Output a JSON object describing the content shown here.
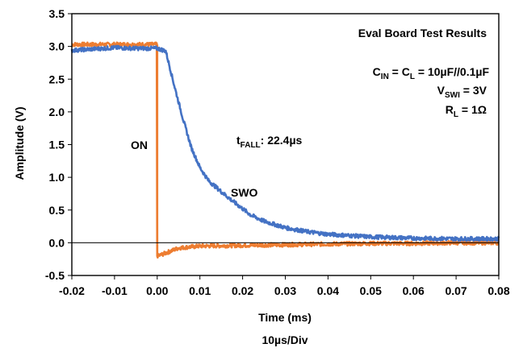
{
  "chart_data": {
    "type": "line",
    "title": "",
    "xlabel": "Time (ms)",
    "ylabel": "Amplitude (V)",
    "x_scale_note": "10µs/Div",
    "xlim": [
      -0.02,
      0.08
    ],
    "ylim": [
      -0.5,
      3.5
    ],
    "x_ticks": [
      "-0.02",
      "-0.01",
      "0.00",
      "0.01",
      "0.02",
      "0.03",
      "0.04",
      "0.05",
      "0.06",
      "0.07",
      "0.08"
    ],
    "y_ticks": [
      "-0.5",
      "0.0",
      "0.5",
      "1.0",
      "1.5",
      "2.0",
      "2.5",
      "3.0",
      "3.5"
    ],
    "grid": false,
    "legend": "none",
    "series": [
      {
        "name": "ON",
        "color": "#ED7D31",
        "x": [
          -0.02,
          -0.015,
          -0.01,
          -0.005,
          -0.0002,
          0.0,
          0.0003,
          0.005,
          0.01,
          0.02,
          0.03,
          0.04,
          0.05,
          0.06,
          0.07,
          0.08
        ],
        "y": [
          3.03,
          3.04,
          3.03,
          3.02,
          3.03,
          1.5,
          -0.2,
          -0.08,
          -0.05,
          -0.04,
          -0.03,
          -0.02,
          -0.01,
          -0.01,
          0.0,
          0.0
        ]
      },
      {
        "name": "SWO",
        "color": "#4472C4",
        "x": [
          -0.02,
          -0.015,
          -0.01,
          -0.005,
          0.0,
          0.002,
          0.004,
          0.006,
          0.008,
          0.01,
          0.012,
          0.015,
          0.018,
          0.02,
          0.022,
          0.025,
          0.03,
          0.035,
          0.04,
          0.05,
          0.06,
          0.07,
          0.08
        ],
        "y": [
          2.94,
          2.96,
          2.98,
          2.97,
          2.97,
          2.93,
          2.4,
          1.9,
          1.45,
          1.15,
          0.95,
          0.78,
          0.62,
          0.52,
          0.42,
          0.33,
          0.23,
          0.17,
          0.13,
          0.09,
          0.07,
          0.06,
          0.06
        ]
      }
    ],
    "annotations": {
      "results_title": "Eval Board Test Results",
      "cap_line_1": "C",
      "cap_sub_1": "IN",
      "cap_line_2": " = C",
      "cap_sub_2": "L",
      "cap_line_3": " = 10µF//0.1µF",
      "vswi_main": "V",
      "vswi_sub": "SWI",
      "vswi_val": " = 3V",
      "rl_main": "R",
      "rl_sub": "L",
      "rl_val": " = 1Ω",
      "tfall_main": "t",
      "tfall_sub": "FALL",
      "tfall_val": ": 22.4µs",
      "on_label": "ON",
      "swo_label": "SWO"
    }
  }
}
